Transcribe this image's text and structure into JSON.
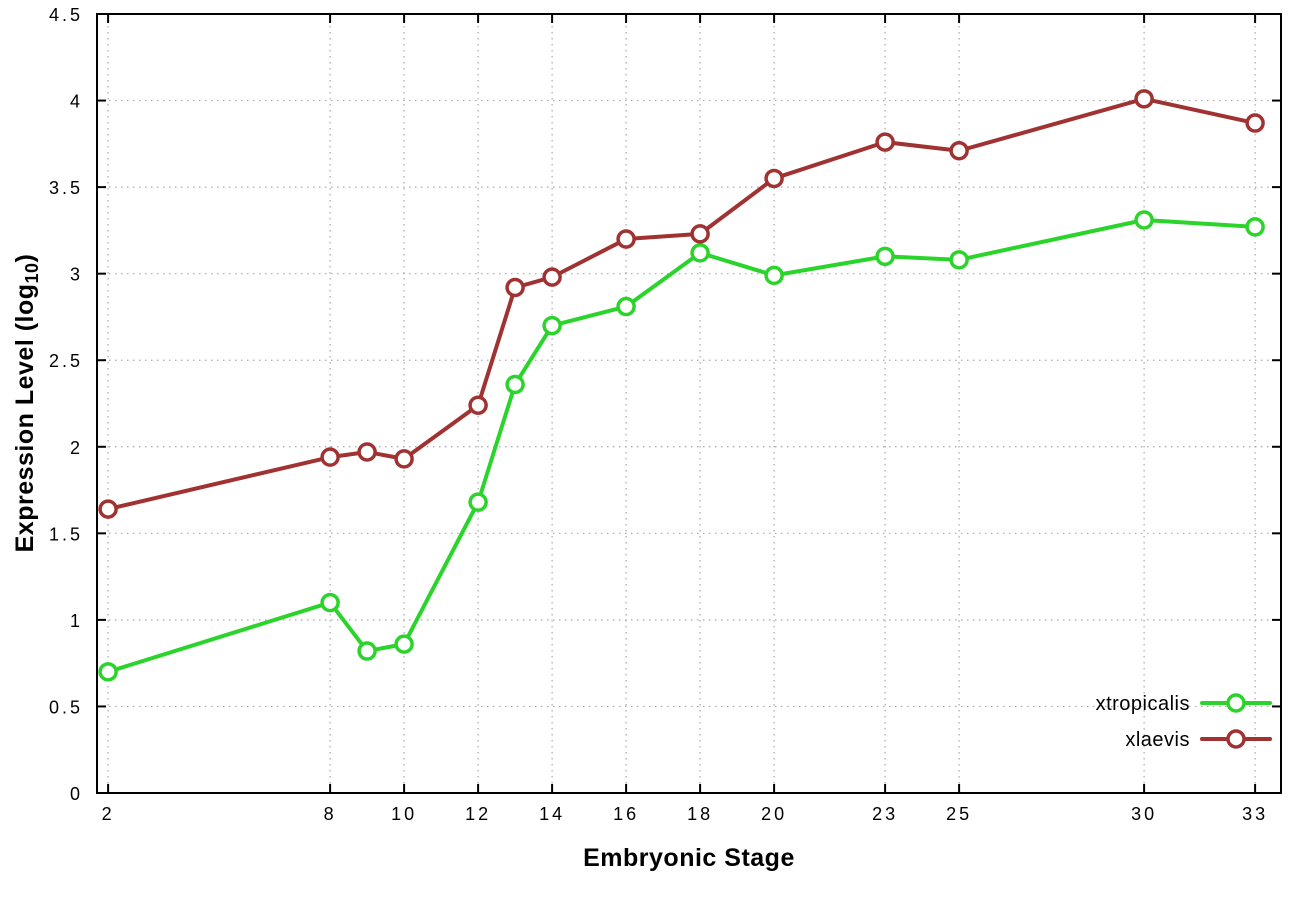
{
  "chart_data": {
    "type": "line",
    "title": "",
    "xlabel": "Embryonic Stage",
    "ylabel": {
      "prefix": "Expression Level (log",
      "sub": "10",
      "suffix": ")"
    },
    "xlim": [
      1.7,
      33.7
    ],
    "ylim": [
      0,
      4.5
    ],
    "x_ticks": [
      2,
      8,
      10,
      12,
      14,
      16,
      18,
      20,
      23,
      25,
      30,
      33
    ],
    "y_ticks": [
      0,
      0.5,
      1,
      1.5,
      2,
      2.5,
      3,
      3.5,
      4,
      4.5
    ],
    "x": [
      2,
      8,
      9,
      10,
      12,
      13,
      14,
      16,
      18,
      20,
      23,
      25,
      30,
      33
    ],
    "series": [
      {
        "name": "xtropicalis",
        "color": "#2bd42b",
        "values": [
          0.7,
          1.1,
          0.82,
          0.86,
          1.68,
          2.36,
          2.7,
          2.81,
          3.12,
          2.99,
          3.1,
          3.08,
          3.31,
          3.27
        ]
      },
      {
        "name": "xlaevis",
        "color": "#a03232",
        "values": [
          1.64,
          1.94,
          1.97,
          1.93,
          2.24,
          2.92,
          2.98,
          3.2,
          3.23,
          3.55,
          3.76,
          3.71,
          4.01,
          3.87
        ]
      }
    ],
    "grid": true,
    "legend_position": "bottom-right",
    "colors": {
      "grid": "#a8a8a8",
      "axis": "#000000",
      "background": "#ffffff",
      "marker_fill": "#ffffff"
    }
  }
}
